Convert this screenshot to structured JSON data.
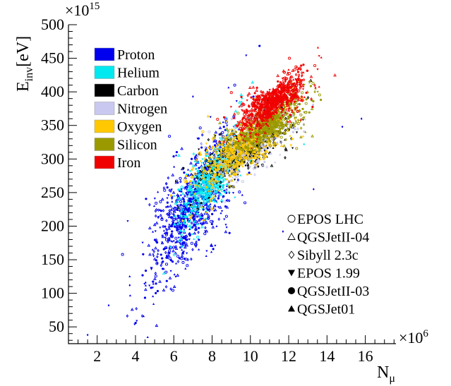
{
  "chart_data": {
    "type": "scatter",
    "title": "",
    "xlabel": "N",
    "xlabel_sub": "μ",
    "ylabel": "E",
    "ylabel_sub": "inv",
    "ylabel_unit": "[eV]",
    "x_multiplier": "×10",
    "x_multiplier_exp": "6",
    "y_multiplier": "×10",
    "y_multiplier_exp": "15",
    "xlim": [
      0.5,
      17.6
    ],
    "ylim": [
      25,
      500
    ],
    "x_ticks": [
      2,
      4,
      6,
      8,
      10,
      12,
      14,
      16
    ],
    "y_ticks": [
      50,
      100,
      150,
      200,
      250,
      300,
      350,
      400,
      450,
      500
    ],
    "grid": false,
    "legend_primary_location": "top-left",
    "legend_models_location": "bottom-right",
    "series": [
      {
        "name": "Proton",
        "color": "#0000ee",
        "x_mean": 6.9,
        "y_mean": 230,
        "x_sd": 1.15,
        "y_sd": 48,
        "slope": 36,
        "count": 900
      },
      {
        "name": "Helium",
        "color": "#00e8f0",
        "x_mean": 8.0,
        "y_mean": 272,
        "x_sd": 0.85,
        "y_sd": 26,
        "slope": 30,
        "count": 700
      },
      {
        "name": "Carbon",
        "color": "#000000",
        "x_mean": 9.8,
        "y_mean": 318,
        "x_sd": 1.15,
        "y_sd": 22,
        "slope": 18,
        "count": 650
      },
      {
        "name": "Nitrogen",
        "color": "#c8c8f0",
        "x_mean": 10.0,
        "y_mean": 322,
        "x_sd": 1.1,
        "y_sd": 22,
        "slope": 18,
        "count": 450
      },
      {
        "name": "Oxygen",
        "color": "#ffc800",
        "x_mean": 9.6,
        "y_mean": 318,
        "x_sd": 1.2,
        "y_sd": 24,
        "slope": 20,
        "count": 650
      },
      {
        "name": "Silicon",
        "color": "#9a9a00",
        "x_mean": 10.9,
        "y_mean": 350,
        "x_sd": 1.0,
        "y_sd": 19,
        "slope": 18,
        "count": 650
      },
      {
        "name": "Iron",
        "color": "#f00000",
        "x_mean": 11.2,
        "y_mean": 385,
        "x_sd": 0.85,
        "y_sd": 17,
        "slope": 17,
        "count": 900
      }
    ],
    "hadronic_models": [
      {
        "name": "EPOS LHC",
        "marker": "open-circle"
      },
      {
        "name": "QGSJetII-04",
        "marker": "open-triangle"
      },
      {
        "name": "Sibyll 2.3c",
        "marker": "open-diamond"
      },
      {
        "name": "EPOS 1.99",
        "marker": "filled-down-triangle"
      },
      {
        "name": "QGSJetII-03",
        "marker": "filled-circle"
      },
      {
        "name": "QGSJet01",
        "marker": "filled-triangle"
      }
    ],
    "outlier_points": [
      {
        "x": 1.5,
        "y": 38,
        "series": "Proton"
      },
      {
        "x": 2.6,
        "y": 82,
        "series": "Proton"
      },
      {
        "x": 3.7,
        "y": 112,
        "series": "Proton"
      },
      {
        "x": 15.8,
        "y": 360,
        "series": "Proton"
      },
      {
        "x": 14.8,
        "y": 348,
        "series": "Proton"
      },
      {
        "x": 13.3,
        "y": 255,
        "series": "Proton"
      },
      {
        "x": 12.8,
        "y": 322,
        "series": "Helium"
      },
      {
        "x": 11.7,
        "y": 192,
        "series": "Proton"
      },
      {
        "x": 7.0,
        "y": 393,
        "series": "Proton"
      }
    ]
  }
}
